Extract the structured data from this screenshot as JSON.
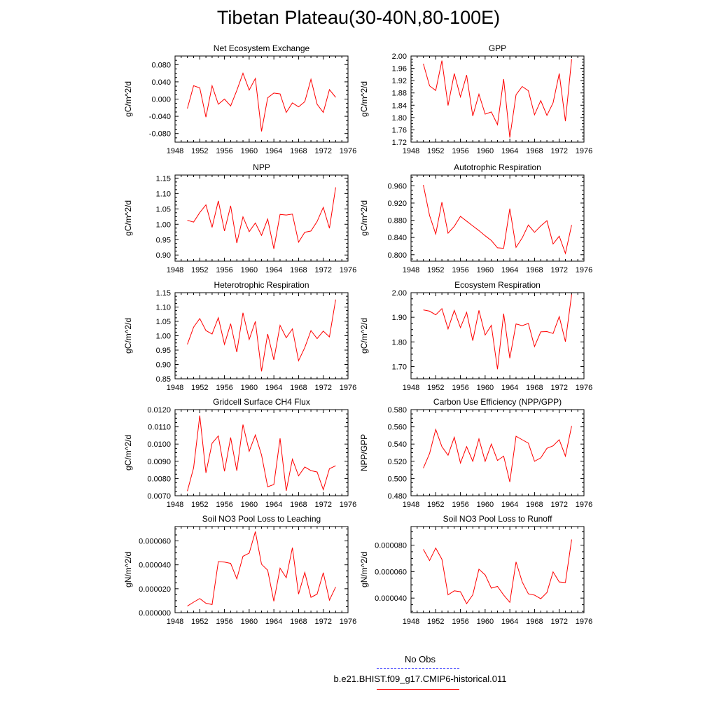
{
  "title": "Tibetan Plateau(30-40N,80-100E)",
  "chart_data": [
    {
      "type": "line",
      "title": "Net Ecosystem Exchange",
      "ylabel": "gC/m^2/d",
      "xlim": [
        1948,
        1976
      ],
      "x_ticks": [
        "1948",
        "1952",
        "1956",
        "1960",
        "1964",
        "1968",
        "1972",
        "1976"
      ],
      "ylim": [
        -0.1,
        0.1
      ],
      "y_ticks": [
        -0.08,
        -0.04,
        0.0,
        0.04,
        0.08
      ],
      "y_tick_labels": [
        "-0.080",
        "-0.040",
        "0.000",
        "0.040",
        "0.080"
      ],
      "series": [
        {
          "color": "#ff0000",
          "x": [
            1950,
            1951,
            1952,
            1953,
            1954,
            1955,
            1956,
            1957,
            1958,
            1959,
            1960,
            1961,
            1962,
            1963,
            1964,
            1965,
            1966,
            1967,
            1968,
            1969,
            1970,
            1971,
            1972,
            1973,
            1974
          ],
          "values": [
            -0.022,
            0.031,
            0.026,
            -0.042,
            0.031,
            -0.012,
            0.0,
            -0.016,
            0.02,
            0.06,
            0.021,
            0.048,
            -0.075,
            0.003,
            0.014,
            0.012,
            -0.031,
            -0.009,
            -0.018,
            -0.006,
            0.046,
            -0.012,
            -0.031,
            0.022,
            0.004
          ]
        }
      ]
    },
    {
      "type": "line",
      "title": "GPP",
      "ylabel": "gC/m^2/d",
      "xlim": [
        1948,
        1976
      ],
      "x_ticks": [
        "1948",
        "1952",
        "1956",
        "1960",
        "1964",
        "1968",
        "1972",
        "1976"
      ],
      "ylim": [
        1.72,
        2.0
      ],
      "y_ticks": [
        1.72,
        1.76,
        1.8,
        1.84,
        1.88,
        1.92,
        1.96,
        2.0
      ],
      "y_tick_labels": [
        "1.72",
        "1.76",
        "1.80",
        "1.84",
        "1.88",
        "1.92",
        "1.96",
        "2.00"
      ],
      "series": [
        {
          "color": "#ff0000",
          "x": [
            1950,
            1951,
            1952,
            1953,
            1954,
            1955,
            1956,
            1957,
            1958,
            1959,
            1960,
            1961,
            1962,
            1963,
            1964,
            1965,
            1966,
            1967,
            1968,
            1969,
            1970,
            1971,
            1972,
            1973,
            1974
          ],
          "values": [
            1.975,
            1.903,
            1.888,
            1.985,
            1.839,
            1.943,
            1.867,
            1.938,
            1.805,
            1.876,
            1.811,
            1.818,
            1.777,
            1.925,
            1.735,
            1.874,
            1.901,
            1.887,
            1.809,
            1.855,
            1.807,
            1.848,
            1.943,
            1.788,
            1.99
          ]
        }
      ]
    },
    {
      "type": "line",
      "title": "NPP",
      "ylabel": "gC/m^2/d",
      "xlim": [
        1948,
        1976
      ],
      "x_ticks": [
        "1948",
        "1952",
        "1956",
        "1960",
        "1964",
        "1968",
        "1972",
        "1976"
      ],
      "ylim": [
        0.88,
        1.16
      ],
      "y_ticks": [
        0.9,
        0.95,
        1.0,
        1.05,
        1.1,
        1.15
      ],
      "y_tick_labels": [
        "0.90",
        "0.95",
        "1.00",
        "1.05",
        "1.10",
        "1.15"
      ],
      "series": [
        {
          "color": "#ff0000",
          "x": [
            1950,
            1951,
            1952,
            1953,
            1954,
            1955,
            1956,
            1957,
            1958,
            1959,
            1960,
            1961,
            1962,
            1963,
            1964,
            1965,
            1966,
            1967,
            1968,
            1969,
            1970,
            1971,
            1972,
            1973,
            1974
          ],
          "values": [
            1.013,
            1.007,
            1.038,
            1.063,
            0.99,
            1.076,
            0.978,
            1.06,
            0.939,
            1.024,
            0.976,
            1.004,
            0.964,
            1.017,
            0.92,
            1.032,
            1.03,
            1.033,
            0.942,
            0.974,
            0.978,
            1.009,
            1.055,
            0.987,
            1.12
          ]
        }
      ]
    },
    {
      "type": "line",
      "title": "Autotrophic Respiration",
      "ylabel": "gC/m^2/d",
      "xlim": [
        1948,
        1976
      ],
      "x_ticks": [
        "1948",
        "1952",
        "1956",
        "1960",
        "1964",
        "1968",
        "1972",
        "1976"
      ],
      "ylim": [
        0.785,
        0.985
      ],
      "y_ticks": [
        0.8,
        0.84,
        0.88,
        0.92,
        0.96
      ],
      "y_tick_labels": [
        "0.800",
        "0.840",
        "0.880",
        "0.920",
        "0.960"
      ],
      "series": [
        {
          "color": "#ff0000",
          "x": [
            1950,
            1951,
            1952,
            1953,
            1954,
            1955,
            1956,
            1957,
            1958,
            1959,
            1960,
            1961,
            1962,
            1963,
            1964,
            1965,
            1966,
            1967,
            1968,
            1969,
            1970,
            1971,
            1972,
            1973,
            1974
          ],
          "values": [
            0.962,
            0.891,
            0.848,
            0.922,
            0.85,
            0.866,
            0.889,
            0.878,
            0.867,
            0.856,
            0.844,
            0.833,
            0.816,
            0.815,
            0.907,
            0.817,
            0.839,
            0.869,
            0.852,
            0.867,
            0.879,
            0.825,
            0.843,
            0.803,
            0.869
          ]
        }
      ]
    },
    {
      "type": "line",
      "title": "Heterotrophic Respiration",
      "ylabel": "gC/m^2/d",
      "xlim": [
        1948,
        1976
      ],
      "x_ticks": [
        "1948",
        "1952",
        "1956",
        "1960",
        "1964",
        "1968",
        "1972",
        "1976"
      ],
      "ylim": [
        0.85,
        1.15
      ],
      "y_ticks": [
        0.85,
        0.9,
        0.95,
        1.0,
        1.05,
        1.1,
        1.15
      ],
      "y_tick_labels": [
        "0.85",
        "0.90",
        "0.95",
        "1.00",
        "1.05",
        "1.10",
        "1.15"
      ],
      "series": [
        {
          "color": "#ff0000",
          "x": [
            1950,
            1951,
            1952,
            1953,
            1954,
            1955,
            1956,
            1957,
            1958,
            1959,
            1960,
            1961,
            1962,
            1963,
            1964,
            1965,
            1966,
            1967,
            1968,
            1969,
            1970,
            1971,
            1972,
            1973,
            1974
          ],
          "values": [
            0.97,
            1.03,
            1.06,
            1.018,
            1.006,
            1.063,
            0.97,
            1.042,
            0.943,
            1.08,
            0.987,
            1.05,
            0.876,
            1.006,
            0.916,
            1.036,
            0.993,
            1.024,
            0.913,
            0.959,
            1.018,
            0.99,
            1.016,
            0.996,
            1.126
          ]
        }
      ]
    },
    {
      "type": "line",
      "title": "Ecosystem Respiration",
      "ylabel": "gC/m^2/d",
      "xlim": [
        1948,
        1976
      ],
      "x_ticks": [
        "1948",
        "1952",
        "1956",
        "1960",
        "1964",
        "1968",
        "1972",
        "1976"
      ],
      "ylim": [
        1.65,
        2.0
      ],
      "y_ticks": [
        1.7,
        1.8,
        1.9,
        2.0
      ],
      "y_tick_labels": [
        "1.70",
        "1.80",
        "1.90",
        "2.00"
      ],
      "series": [
        {
          "color": "#ff0000",
          "x": [
            1950,
            1951,
            1952,
            1953,
            1954,
            1955,
            1956,
            1957,
            1958,
            1959,
            1960,
            1961,
            1962,
            1963,
            1964,
            1965,
            1966,
            1967,
            1968,
            1969,
            1970,
            1971,
            1972,
            1973,
            1974
          ],
          "values": [
            1.93,
            1.925,
            1.91,
            1.935,
            1.853,
            1.928,
            1.858,
            1.92,
            1.805,
            1.928,
            1.828,
            1.867,
            1.689,
            1.915,
            1.734,
            1.873,
            1.866,
            1.875,
            1.781,
            1.841,
            1.842,
            1.834,
            1.903,
            1.801,
            1.993
          ]
        }
      ]
    },
    {
      "type": "line",
      "title": "Gridcell Surface CH4 Flux",
      "ylabel": "gC/m^2/d",
      "xlim": [
        1948,
        1976
      ],
      "x_ticks": [
        "1948",
        "1952",
        "1956",
        "1960",
        "1964",
        "1968",
        "1972",
        "1976"
      ],
      "ylim": [
        0.007,
        0.012
      ],
      "y_ticks": [
        0.007,
        0.008,
        0.009,
        0.01,
        0.011,
        0.012
      ],
      "y_tick_labels": [
        "0.0070",
        "0.0080",
        "0.0090",
        "0.0100",
        "0.0110",
        "0.0120"
      ],
      "series": [
        {
          "color": "#ff0000",
          "x": [
            1950,
            1951,
            1952,
            1953,
            1954,
            1955,
            1956,
            1957,
            1958,
            1959,
            1960,
            1961,
            1962,
            1963,
            1964,
            1965,
            1966,
            1967,
            1968,
            1969,
            1970,
            1971,
            1972,
            1973,
            1974
          ],
          "values": [
            0.00727,
            0.00862,
            0.01165,
            0.00833,
            0.01005,
            0.01047,
            0.00842,
            0.01038,
            0.00845,
            0.01113,
            0.00958,
            0.01053,
            0.00937,
            0.00752,
            0.00765,
            0.01033,
            0.00729,
            0.00912,
            0.00816,
            0.00867,
            0.00846,
            0.00838,
            0.00735,
            0.00857,
            0.00874
          ]
        }
      ]
    },
    {
      "type": "line",
      "title": "Carbon Use Efficiency (NPP/GPP)",
      "ylabel": "NPP/GPP",
      "xlim": [
        1948,
        1976
      ],
      "x_ticks": [
        "1948",
        "1952",
        "1956",
        "1960",
        "1964",
        "1968",
        "1972",
        "1976"
      ],
      "ylim": [
        0.48,
        0.58
      ],
      "y_ticks": [
        0.48,
        0.5,
        0.52,
        0.54,
        0.56,
        0.58
      ],
      "y_tick_labels": [
        "0.480",
        "0.500",
        "0.520",
        "0.540",
        "0.560",
        "0.580"
      ],
      "series": [
        {
          "color": "#ff0000",
          "x": [
            1950,
            1951,
            1952,
            1953,
            1954,
            1955,
            1956,
            1957,
            1958,
            1959,
            1960,
            1961,
            1962,
            1963,
            1964,
            1965,
            1966,
            1967,
            1968,
            1969,
            1970,
            1971,
            1972,
            1973,
            1974
          ],
          "values": [
            0.512,
            0.529,
            0.557,
            0.537,
            0.527,
            0.548,
            0.518,
            0.537,
            0.52,
            0.546,
            0.52,
            0.54,
            0.521,
            0.526,
            0.496,
            0.549,
            0.545,
            0.541,
            0.52,
            0.524,
            0.535,
            0.538,
            0.545,
            0.526,
            0.561
          ]
        }
      ]
    },
    {
      "type": "line",
      "title": "Soil NO3 Pool Loss to Leaching",
      "ylabel": "gN/m^2/d",
      "xlim": [
        1948,
        1976
      ],
      "x_ticks": [
        "1948",
        "1952",
        "1956",
        "1960",
        "1964",
        "1968",
        "1972",
        "1976"
      ],
      "ylim": [
        0.0,
        7.2e-05
      ],
      "y_ticks": [
        0.0,
        2e-05,
        4e-05,
        6e-05
      ],
      "y_tick_labels": [
        "0.000000",
        "0.000020",
        "0.000040",
        "0.000060"
      ],
      "series": [
        {
          "color": "#ff0000",
          "x": [
            1950,
            1951,
            1952,
            1953,
            1954,
            1955,
            1956,
            1957,
            1958,
            1959,
            1960,
            1961,
            1962,
            1963,
            1964,
            1965,
            1966,
            1967,
            1968,
            1969,
            1970,
            1971,
            1972,
            1973,
            1974
          ],
          "values": [
            5.5e-06,
            8.8e-06,
            1.18e-05,
            7.9e-06,
            6.8e-06,
            4.27e-05,
            4.23e-05,
            4.12e-05,
            2.83e-05,
            4.71e-05,
            4.98e-05,
            6.78e-05,
            4.05e-05,
            3.55e-05,
            9.5e-06,
            3.72e-05,
            2.92e-05,
            5.43e-05,
            1.55e-05,
            3.36e-05,
            1.28e-05,
            1.55e-05,
            3.34e-05,
            1.05e-05,
            2.15e-05
          ]
        }
      ]
    },
    {
      "type": "line",
      "title": "Soil NO3 Pool Loss to Runoff",
      "ylabel": "gN/m^2/d",
      "xlim": [
        1948,
        1976
      ],
      "x_ticks": [
        "1948",
        "1952",
        "1956",
        "1960",
        "1964",
        "1968",
        "1972",
        "1976"
      ],
      "ylim": [
        2.9e-05,
        9.4e-05
      ],
      "y_ticks": [
        4e-05,
        6e-05,
        8e-05
      ],
      "y_tick_labels": [
        "0.000040",
        "0.000060",
        "0.000080"
      ],
      "series": [
        {
          "color": "#ff0000",
          "x": [
            1950,
            1951,
            1952,
            1953,
            1954,
            1955,
            1956,
            1957,
            1958,
            1959,
            1960,
            1961,
            1962,
            1963,
            1964,
            1965,
            1966,
            1967,
            1968,
            1969,
            1970,
            1971,
            1972,
            1973,
            1974
          ],
          "values": [
            7.68e-05,
            6.83e-05,
            7.78e-05,
            6.93e-05,
            4.25e-05,
            4.55e-05,
            4.48e-05,
            3.58e-05,
            4.25e-05,
            6.18e-05,
            5.75e-05,
            4.75e-05,
            4.88e-05,
            4.23e-05,
            3.68e-05,
            6.73e-05,
            5.22e-05,
            4.32e-05,
            4.22e-05,
            3.95e-05,
            4.42e-05,
            5.98e-05,
            5.22e-05,
            5.18e-05,
            8.42e-05
          ]
        }
      ]
    }
  ],
  "legend": {
    "items": [
      {
        "label": "No Obs",
        "color": "#4d4dff",
        "dash": true
      },
      {
        "label": "b.e21.BHIST.f09_g17.CMIP6-historical.011",
        "color": "#ff0000",
        "dash": false
      }
    ]
  }
}
